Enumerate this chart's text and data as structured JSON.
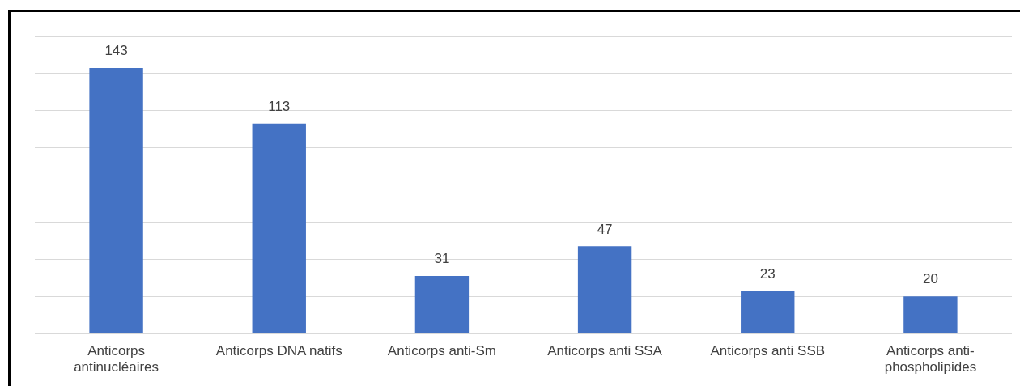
{
  "chart_data": {
    "type": "bar",
    "categories": [
      "Anticorps antinucléaires",
      "Anticorps DNA natifs",
      "Anticorps anti-Sm",
      "Anticorps anti SSA",
      "Anticorps anti SSB",
      "Anticorps anti-phospholipides"
    ],
    "values": [
      143,
      113,
      31,
      47,
      23,
      20
    ],
    "color": "#4472c4",
    "ylim": [
      0,
      160
    ],
    "yticks": [
      {
        "value": 0,
        "label": null
      },
      {
        "value": 20,
        "label": null
      },
      {
        "value": 40,
        "label": null
      },
      {
        "value": 60,
        "label": null
      },
      {
        "value": 80,
        "label": null
      },
      {
        "value": 100,
        "label": null
      },
      {
        "value": 120,
        "label": null
      },
      {
        "value": 140,
        "label": null
      },
      {
        "value": 160,
        "label": null
      }
    ],
    "tick_labels": "x",
    "grid": "y",
    "data_labels": true,
    "legend": false
  }
}
